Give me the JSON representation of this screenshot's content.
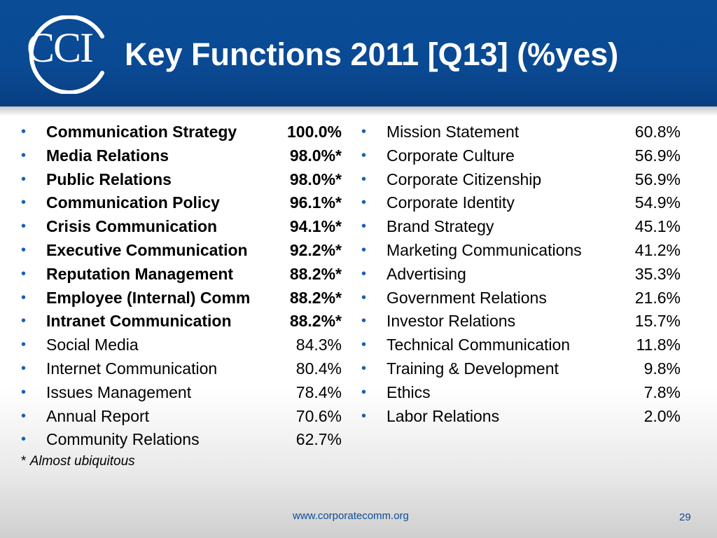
{
  "header": {
    "logo_text": "CCI",
    "title": "Key Functions 2011 [Q13] (%yes)",
    "color": "#0b4c97"
  },
  "bullet": "•",
  "left_column": [
    {
      "label": "Communication Strategy",
      "value": "100.0%",
      "bold": true
    },
    {
      "label": "Media Relations",
      "value": "98.0%*",
      "bold": true
    },
    {
      "label": "Public Relations",
      "value": "98.0%*",
      "bold": true
    },
    {
      "label": "Communication Policy",
      "value": "96.1%*",
      "bold": true
    },
    {
      "label": "Crisis Communication",
      "value": "94.1%*",
      "bold": true
    },
    {
      "label": "Executive Communication",
      "value": "92.2%*",
      "bold": true
    },
    {
      "label": "Reputation Management",
      "value": "88.2%*",
      "bold": true
    },
    {
      "label": "Employee (Internal) Comm",
      "value": "88.2%*",
      "bold": true
    },
    {
      "label": "Intranet Communication",
      "value": "88.2%*",
      "bold": true
    },
    {
      "label": "Social Media",
      "value": "84.3%",
      "bold": false
    },
    {
      "label": "Internet Communication",
      "value": "80.4%",
      "bold": false
    },
    {
      "label": "Issues Management",
      "value": "78.4%",
      "bold": false
    },
    {
      "label": "Annual Report",
      "value": "70.6%",
      "bold": false
    },
    {
      "label": "Community Relations",
      "value": "62.7%",
      "bold": false
    }
  ],
  "right_column": [
    {
      "label": "Mission Statement",
      "value": "60.8%",
      "bold": false
    },
    {
      "label": "Corporate Culture",
      "value": "56.9%",
      "bold": false
    },
    {
      "label": "Corporate Citizenship",
      "value": "56.9%",
      "bold": false
    },
    {
      "label": "Corporate Identity",
      "value": "54.9%",
      "bold": false
    },
    {
      "label": "Brand Strategy",
      "value": "45.1%",
      "bold": false
    },
    {
      "label": "Marketing Communications",
      "value": "41.2%",
      "bold": false
    },
    {
      "label": "Advertising",
      "value": "35.3%",
      "bold": false
    },
    {
      "label": "Government Relations",
      "value": "21.6%",
      "bold": false
    },
    {
      "label": "Investor Relations",
      "value": "15.7%",
      "bold": false
    },
    {
      "label": "Technical Communication",
      "value": "11.8%",
      "bold": false
    },
    {
      "label": "Training & Development",
      "value": "9.8%",
      "bold": false
    },
    {
      "label": "Ethics",
      "value": "7.8%",
      "bold": false
    },
    {
      "label": "Labor Relations",
      "value": "2.0%",
      "bold": false
    }
  ],
  "footnote": {
    "marker": "*",
    "text": "Almost ubiquitous"
  },
  "footer": {
    "url": "www.corporatecomm.org",
    "page_number": "29"
  }
}
